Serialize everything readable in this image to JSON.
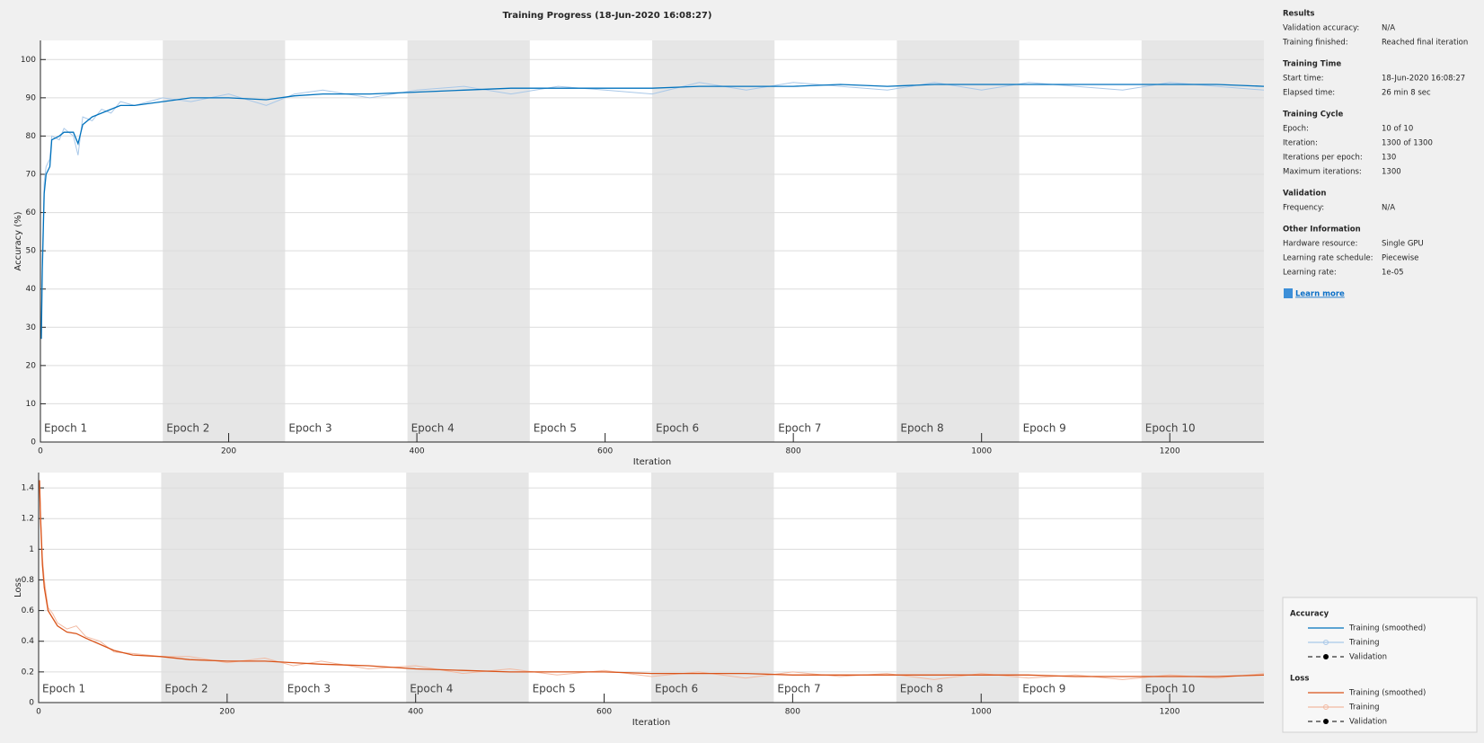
{
  "title": "Training Progress (18-Jun-2020 16:08:27)",
  "chart_data": [
    {
      "type": "line",
      "ylabel": "Accuracy (%)",
      "xlabel": "Iteration",
      "xlim": [
        0,
        1300
      ],
      "xticks": [
        0,
        200,
        400,
        600,
        800,
        1000,
        1200
      ],
      "ylim": [
        0,
        105
      ],
      "yticks": [
        0,
        10,
        20,
        30,
        40,
        50,
        60,
        70,
        80,
        90,
        100
      ],
      "grid": true,
      "legend_title": "Accuracy",
      "validation_label": "Validation",
      "epochs": [
        {
          "label": "Epoch 1",
          "start": 0,
          "end": 130
        },
        {
          "label": "Epoch 2",
          "start": 130,
          "end": 260
        },
        {
          "label": "Epoch 3",
          "start": 260,
          "end": 390
        },
        {
          "label": "Epoch 4",
          "start": 390,
          "end": 520
        },
        {
          "label": "Epoch 5",
          "start": 520,
          "end": 650
        },
        {
          "label": "Epoch 6",
          "start": 650,
          "end": 780
        },
        {
          "label": "Epoch 7",
          "start": 780,
          "end": 910
        },
        {
          "label": "Epoch 8",
          "start": 910,
          "end": 1040
        },
        {
          "label": "Epoch 9",
          "start": 1040,
          "end": 1170
        },
        {
          "label": "Epoch 10",
          "start": 1170,
          "end": 1300
        }
      ],
      "x": [
        1,
        2,
        4,
        6,
        10,
        12,
        20,
        25,
        35,
        40,
        45,
        55,
        65,
        75,
        85,
        100,
        130,
        160,
        200,
        240,
        270,
        300,
        350,
        400,
        450,
        500,
        550,
        600,
        650,
        700,
        750,
        800,
        850,
        900,
        950,
        1000,
        1050,
        1100,
        1150,
        1200,
        1250,
        1300
      ],
      "series": [
        {
          "name": "Training",
          "color": "#a9c8e8",
          "values": [
            27,
            48,
            68,
            72,
            74,
            80,
            79,
            82,
            80,
            75,
            85,
            84,
            87,
            86,
            89,
            88,
            90,
            89,
            91,
            88,
            91,
            92,
            90,
            92,
            93,
            91,
            93,
            92,
            91,
            94,
            92,
            94,
            93,
            92,
            94,
            92,
            94,
            93,
            92,
            94,
            93,
            92
          ]
        },
        {
          "name": "Training (smoothed)",
          "color": "#0072bd",
          "values": [
            27,
            45,
            65,
            70,
            72,
            79,
            80,
            81,
            81,
            78,
            83,
            85,
            86,
            87,
            88,
            88,
            89,
            90,
            90,
            89.5,
            90.5,
            91,
            91,
            91.5,
            92,
            92.5,
            92.5,
            92.5,
            92.5,
            93,
            93,
            93,
            93.5,
            93,
            93.5,
            93.5,
            93.5,
            93.5,
            93.5,
            93.5,
            93.5,
            93
          ]
        }
      ]
    },
    {
      "type": "line",
      "ylabel": "Loss",
      "xlabel": "Iteration",
      "xlim": [
        0,
        1300
      ],
      "xticks": [
        0,
        200,
        400,
        600,
        800,
        1000,
        1200
      ],
      "ylim": [
        0,
        1.5
      ],
      "yticks": [
        0,
        0.2,
        0.4,
        0.6,
        0.8,
        1,
        1.2,
        1.4
      ],
      "grid": true,
      "legend_title": "Loss",
      "validation_label": "Validation",
      "epochs": [
        {
          "label": "Epoch 1",
          "start": 0,
          "end": 130
        },
        {
          "label": "Epoch 2",
          "start": 130,
          "end": 260
        },
        {
          "label": "Epoch 3",
          "start": 260,
          "end": 390
        },
        {
          "label": "Epoch 4",
          "start": 390,
          "end": 520
        },
        {
          "label": "Epoch 5",
          "start": 520,
          "end": 650
        },
        {
          "label": "Epoch 6",
          "start": 650,
          "end": 780
        },
        {
          "label": "Epoch 7",
          "start": 780,
          "end": 910
        },
        {
          "label": "Epoch 8",
          "start": 910,
          "end": 1040
        },
        {
          "label": "Epoch 9",
          "start": 1040,
          "end": 1170
        },
        {
          "label": "Epoch 10",
          "start": 1170,
          "end": 1300
        }
      ],
      "x": [
        1,
        2,
        4,
        6,
        10,
        15,
        20,
        30,
        40,
        50,
        65,
        80,
        100,
        130,
        160,
        200,
        240,
        270,
        300,
        350,
        400,
        450,
        500,
        550,
        600,
        650,
        700,
        750,
        800,
        850,
        900,
        950,
        1000,
        1050,
        1100,
        1150,
        1200,
        1250,
        1300
      ],
      "series": [
        {
          "name": "Training",
          "color": "#f2b9a1",
          "values": [
            1.45,
            1.25,
            0.95,
            0.8,
            0.62,
            0.58,
            0.52,
            0.48,
            0.5,
            0.43,
            0.4,
            0.33,
            0.32,
            0.3,
            0.3,
            0.26,
            0.29,
            0.24,
            0.27,
            0.22,
            0.24,
            0.19,
            0.22,
            0.18,
            0.21,
            0.17,
            0.2,
            0.16,
            0.2,
            0.17,
            0.19,
            0.15,
            0.19,
            0.16,
            0.18,
            0.15,
            0.18,
            0.16,
            0.19
          ]
        },
        {
          "name": "Training (smoothed)",
          "color": "#d95319",
          "values": [
            1.45,
            1.2,
            0.9,
            0.75,
            0.6,
            0.55,
            0.5,
            0.46,
            0.45,
            0.42,
            0.38,
            0.34,
            0.31,
            0.3,
            0.28,
            0.27,
            0.27,
            0.26,
            0.25,
            0.24,
            0.22,
            0.21,
            0.2,
            0.2,
            0.2,
            0.19,
            0.19,
            0.19,
            0.18,
            0.18,
            0.18,
            0.18,
            0.18,
            0.18,
            0.17,
            0.17,
            0.17,
            0.17,
            0.18
          ]
        }
      ]
    }
  ],
  "info_panel": {
    "sections": [
      {
        "title": "Results",
        "rows": [
          [
            "Validation accuracy:",
            "N/A"
          ],
          [
            "Training finished:",
            "Reached final iteration"
          ]
        ]
      },
      {
        "title": "Training Time",
        "rows": [
          [
            "Start time:",
            "18-Jun-2020 16:08:27"
          ],
          [
            "Elapsed time:",
            "26 min 8 sec"
          ]
        ]
      },
      {
        "title": "Training Cycle",
        "rows": [
          [
            "Epoch:",
            "10 of 10"
          ],
          [
            "Iteration:",
            "1300 of 1300"
          ],
          [
            "Iterations per epoch:",
            "130"
          ],
          [
            "Maximum iterations:",
            "1300"
          ]
        ]
      },
      {
        "title": "Validation",
        "rows": [
          [
            "Frequency:",
            "N/A"
          ]
        ]
      },
      {
        "title": "Other Information",
        "rows": [
          [
            "Hardware resource:",
            "Single GPU"
          ],
          [
            "Learning rate schedule:",
            "Piecewise"
          ],
          [
            "Learning rate:",
            "1e-05"
          ]
        ]
      }
    ],
    "link": "Learn more"
  }
}
